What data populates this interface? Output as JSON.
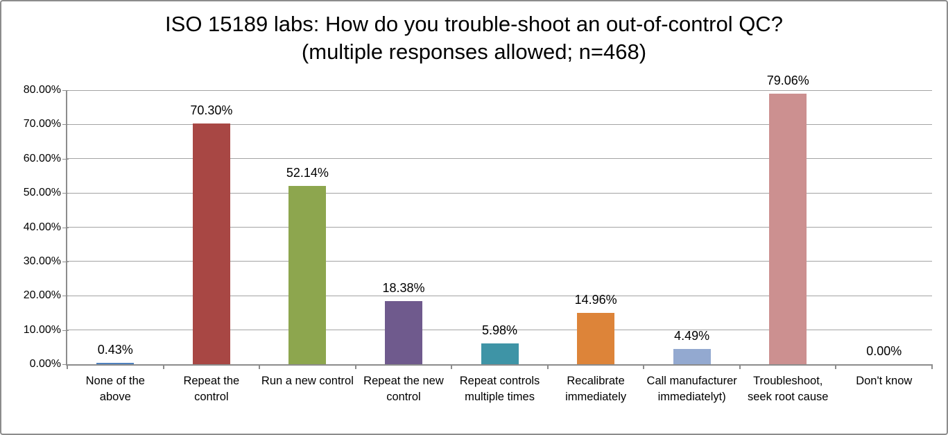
{
  "frame": {
    "background": "#ffffff",
    "border_color": "#8c8c8c"
  },
  "chart_data": {
    "type": "bar",
    "title": "ISO 15189 labs: How do you trouble-shoot an out-of-control QC?",
    "subtitle": "(multiple responses allowed; n=468)",
    "categories": [
      "None of the above",
      "Repeat the control",
      "Run a new control",
      "Repeat the new control",
      "Repeat controls multiple times",
      "Recalibrate immediately",
      "Call manufacturer immediatelyt)",
      "Troubleshoot, seek root cause",
      "Don't know"
    ],
    "values": [
      0.43,
      70.3,
      52.14,
      18.38,
      5.98,
      14.96,
      4.49,
      79.06,
      0.0
    ],
    "data_labels": [
      "0.43%",
      "70.30%",
      "52.14%",
      "18.38%",
      "5.98%",
      "14.96%",
      "4.49%",
      "79.06%",
      "0.00%"
    ],
    "bar_colors": [
      "#4f81bd",
      "#a84744",
      "#8da64e",
      "#6f5a8d",
      "#3e94a6",
      "#dd8439",
      "#93a9d0",
      "#cc9090",
      "#4f81bd"
    ],
    "xlabel": "",
    "ylabel": "",
    "ylim": [
      0,
      80
    ],
    "ytick_step": 10,
    "ytick_labels": [
      "0.00%",
      "10.00%",
      "20.00%",
      "30.00%",
      "40.00%",
      "50.00%",
      "60.00%",
      "70.00%",
      "80.00%"
    ],
    "grid": true,
    "legend": "none",
    "gridline_color": "#a3a3a3",
    "axis_color": "#8c8c8c"
  }
}
